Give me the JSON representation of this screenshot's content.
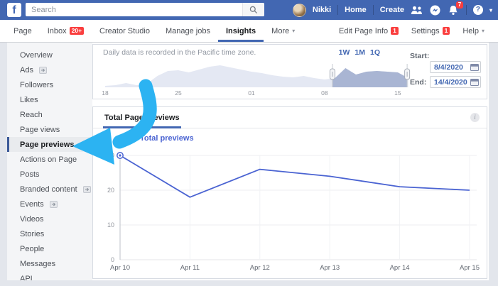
{
  "topbar": {
    "logo": "f",
    "search_placeholder": "Search",
    "user_name": "Nikki",
    "links": [
      "Home",
      "Create"
    ],
    "notification_count": "7",
    "icons": [
      "friends-icon",
      "messenger-icon",
      "notifications-icon",
      "help-icon",
      "account-caret-icon"
    ]
  },
  "pagenav": {
    "left_items": [
      {
        "label": "Page"
      },
      {
        "label": "Inbox",
        "badge": "20+"
      },
      {
        "label": "Creator Studio"
      },
      {
        "label": "Manage jobs"
      },
      {
        "label": "Insights",
        "active": true
      },
      {
        "label": "More",
        "caret": true
      }
    ],
    "right_items": [
      {
        "label": "Edit Page Info",
        "badge": "1"
      },
      {
        "label": "Settings",
        "badge": "1"
      },
      {
        "label": "Help",
        "caret": true
      }
    ]
  },
  "sidebar": {
    "items": [
      {
        "label": "Overview"
      },
      {
        "label": "Ads",
        "external": true
      },
      {
        "label": "Followers"
      },
      {
        "label": "Likes"
      },
      {
        "label": "Reach"
      },
      {
        "label": "Page views"
      },
      {
        "label": "Page previews",
        "active": true
      },
      {
        "label": "Actions on Page"
      },
      {
        "label": "Posts"
      },
      {
        "label": "Branded content",
        "external": true
      },
      {
        "label": "Events",
        "external": true
      },
      {
        "label": "Videos"
      },
      {
        "label": "Stories"
      },
      {
        "label": "People"
      },
      {
        "label": "Messages"
      },
      {
        "label": "API"
      }
    ]
  },
  "range_panel": {
    "note": "Daily data is recorded in the Pacific time zone.",
    "quick_ranges": [
      "1W",
      "1M",
      "1Q"
    ],
    "start_label": "Start:",
    "start_value": "8/4/2020",
    "end_label": "End:",
    "end_value": "14/4/2020"
  },
  "chart_card": {
    "tab": "Total Page Previews",
    "legend": "Total previews"
  },
  "chart_data": [
    {
      "type": "line",
      "title": "Total Page Previews",
      "categories": [
        "Apr 10",
        "Apr 11",
        "Apr 12",
        "Apr 13",
        "Apr 14",
        "Apr 15"
      ],
      "series": [
        {
          "name": "Total previews",
          "values": [
            30,
            18,
            26,
            24,
            21,
            20
          ]
        }
      ],
      "ylim": [
        0,
        30
      ],
      "yticks": [
        0,
        10,
        20,
        30
      ],
      "grid": true,
      "legend_position": "top-left",
      "highlight_point": {
        "category": "Apr 10",
        "value": 30
      }
    },
    {
      "type": "area",
      "title": "date-range-scrubber",
      "x_tick_labels": [
        "18",
        "25",
        "01",
        "08",
        "15"
      ],
      "values": [
        2,
        3,
        6,
        3,
        5,
        16,
        23,
        24,
        21,
        25,
        29,
        31,
        28,
        25,
        22,
        20,
        17,
        15,
        14,
        16,
        13,
        11,
        13,
        27,
        18,
        22,
        23,
        22,
        21,
        13
      ],
      "selection": {
        "start": "8/4/2020",
        "end": "14/4/2020",
        "start_index": 21.75,
        "end_index": 28.9
      }
    }
  ],
  "colors": {
    "header_blue": "#4267b2",
    "badge_red": "#fa3e3e",
    "line_blue": "#4a63d2",
    "mini_area_light": "#e4e8f3",
    "mini_area_selected": "#a9b5d3",
    "arrow_cyan": "#2cb3f2",
    "muted_text": "#90949c"
  }
}
